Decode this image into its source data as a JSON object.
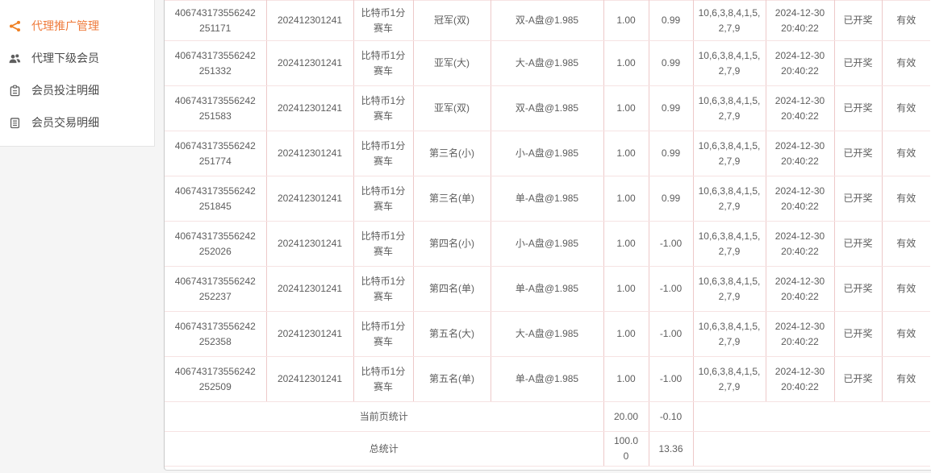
{
  "sidebar": {
    "active_color": "#ef8125",
    "items": [
      {
        "label": "代理推广管理",
        "icon": "share-icon",
        "active": true
      },
      {
        "label": "代理下级会员",
        "icon": "users-icon",
        "active": false
      },
      {
        "label": "会员投注明细",
        "icon": "bet-list-icon",
        "active": false
      },
      {
        "label": "会员交易明细",
        "icon": "transaction-list-icon",
        "active": false
      }
    ]
  },
  "table": {
    "rows": [
      {
        "order_id": "406743173556242251171",
        "period": "202412301241",
        "game": "比特币1分赛车",
        "bet_type": "冠军(双)",
        "odds": "双-A盘@1.985",
        "amount": "1.00",
        "profit": "0.99",
        "result": "10,6,3,8,4,1,5,2,7,9",
        "time": "2024-12-30 20:40:22",
        "status": "已开奖",
        "validity": "有效"
      },
      {
        "order_id": "406743173556242251332",
        "period": "202412301241",
        "game": "比特币1分赛车",
        "bet_type": "亚军(大)",
        "odds": "大-A盘@1.985",
        "amount": "1.00",
        "profit": "0.99",
        "result": "10,6,3,8,4,1,5,2,7,9",
        "time": "2024-12-30 20:40:22",
        "status": "已开奖",
        "validity": "有效"
      },
      {
        "order_id": "406743173556242251583",
        "period": "202412301241",
        "game": "比特币1分赛车",
        "bet_type": "亚军(双)",
        "odds": "双-A盘@1.985",
        "amount": "1.00",
        "profit": "0.99",
        "result": "10,6,3,8,4,1,5,2,7,9",
        "time": "2024-12-30 20:40:22",
        "status": "已开奖",
        "validity": "有效"
      },
      {
        "order_id": "406743173556242251774",
        "period": "202412301241",
        "game": "比特币1分赛车",
        "bet_type": "第三名(小)",
        "odds": "小-A盘@1.985",
        "amount": "1.00",
        "profit": "0.99",
        "result": "10,6,3,8,4,1,5,2,7,9",
        "time": "2024-12-30 20:40:22",
        "status": "已开奖",
        "validity": "有效"
      },
      {
        "order_id": "406743173556242251845",
        "period": "202412301241",
        "game": "比特币1分赛车",
        "bet_type": "第三名(单)",
        "odds": "单-A盘@1.985",
        "amount": "1.00",
        "profit": "0.99",
        "result": "10,6,3,8,4,1,5,2,7,9",
        "time": "2024-12-30 20:40:22",
        "status": "已开奖",
        "validity": "有效"
      },
      {
        "order_id": "406743173556242252026",
        "period": "202412301241",
        "game": "比特币1分赛车",
        "bet_type": "第四名(小)",
        "odds": "小-A盘@1.985",
        "amount": "1.00",
        "profit": "-1.00",
        "result": "10,6,3,8,4,1,5,2,7,9",
        "time": "2024-12-30 20:40:22",
        "status": "已开奖",
        "validity": "有效"
      },
      {
        "order_id": "406743173556242252237",
        "period": "202412301241",
        "game": "比特币1分赛车",
        "bet_type": "第四名(单)",
        "odds": "单-A盘@1.985",
        "amount": "1.00",
        "profit": "-1.00",
        "result": "10,6,3,8,4,1,5,2,7,9",
        "time": "2024-12-30 20:40:22",
        "status": "已开奖",
        "validity": "有效"
      },
      {
        "order_id": "406743173556242252358",
        "period": "202412301241",
        "game": "比特币1分赛车",
        "bet_type": "第五名(大)",
        "odds": "大-A盘@1.985",
        "amount": "1.00",
        "profit": "-1.00",
        "result": "10,6,3,8,4,1,5,2,7,9",
        "time": "2024-12-30 20:40:22",
        "status": "已开奖",
        "validity": "有效"
      },
      {
        "order_id": "406743173556242252509",
        "period": "202412301241",
        "game": "比特币1分赛车",
        "bet_type": "第五名(单)",
        "odds": "单-A盘@1.985",
        "amount": "1.00",
        "profit": "-1.00",
        "result": "10,6,3,8,4,1,5,2,7,9",
        "time": "2024-12-30 20:40:22",
        "status": "已开奖",
        "validity": "有效"
      }
    ],
    "summary_rows": [
      {
        "label": "当前页统计",
        "amount": "20.00",
        "profit": "-0.10"
      },
      {
        "label": "总统计",
        "amount": "100.00",
        "profit": "13.36"
      }
    ]
  }
}
